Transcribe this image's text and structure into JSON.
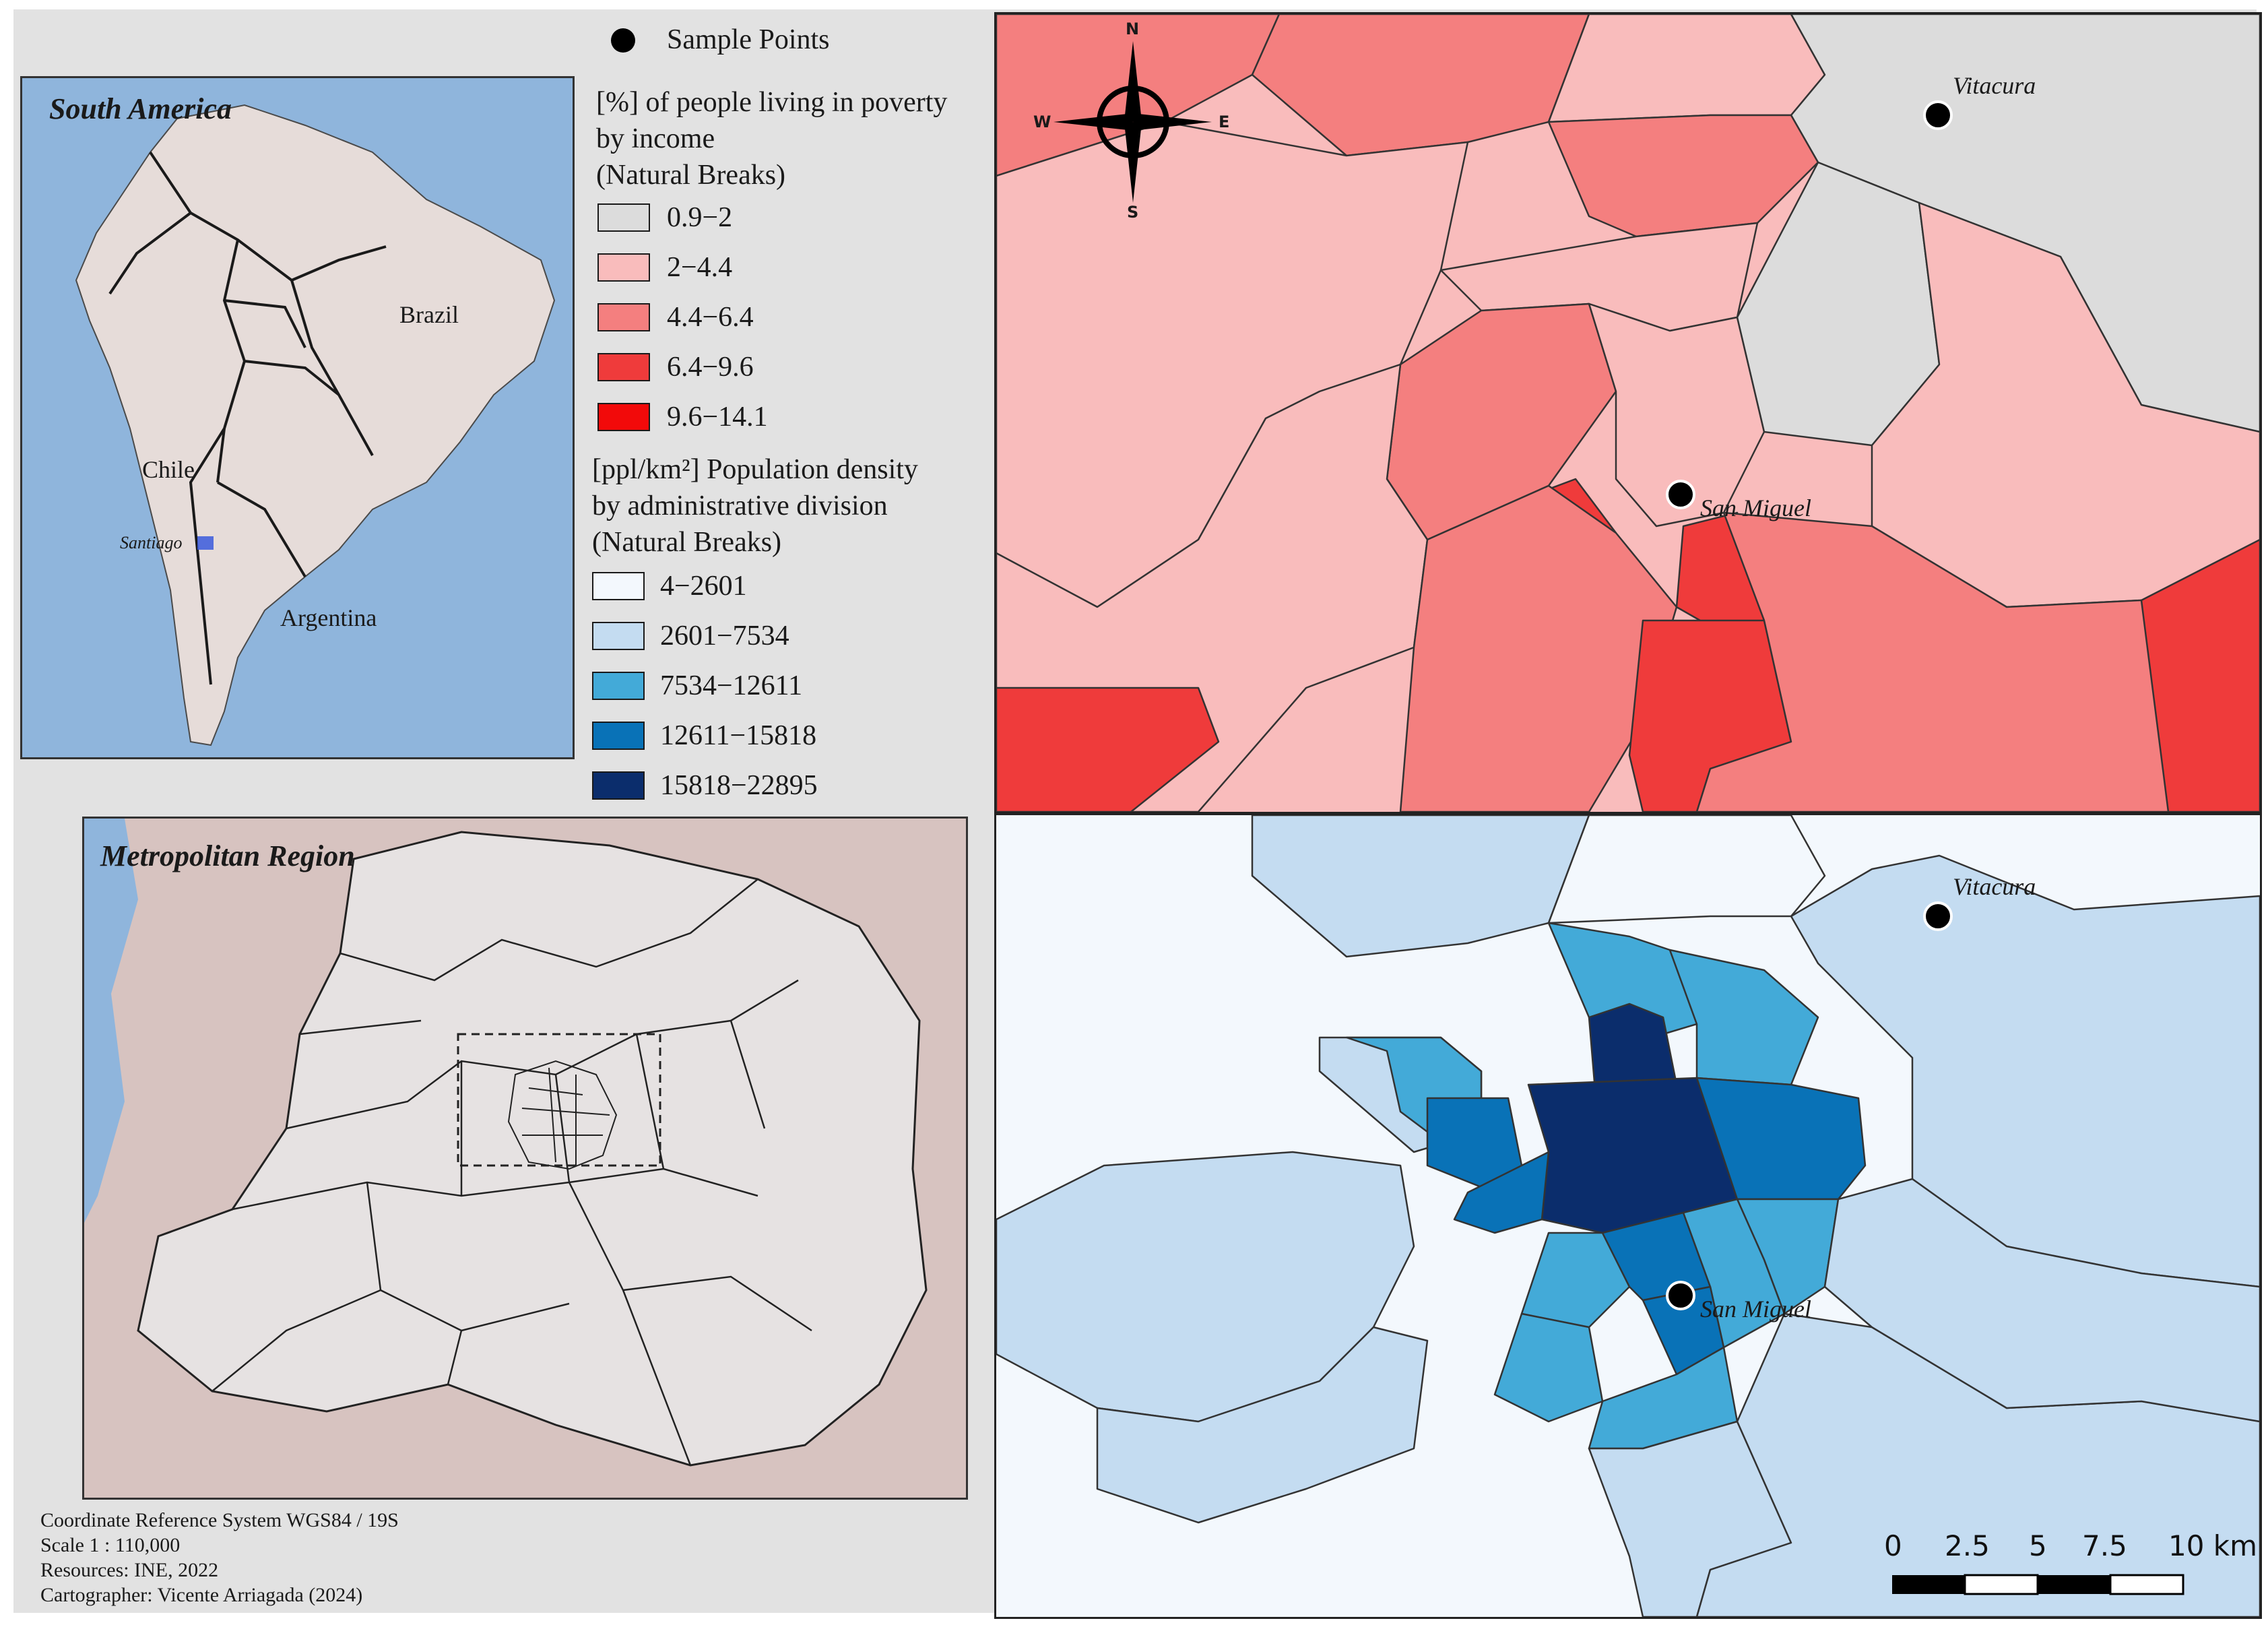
{
  "legend": {
    "sample_points_label": "Sample Points",
    "poverty_title": [
      "[%] of people living in poverty",
      "by income",
      "(Natural Breaks)"
    ],
    "poverty_classes": [
      {
        "label": "0.9−2",
        "color": "#dcdcdc"
      },
      {
        "label": "2−4.4",
        "color": "#f9bcbc"
      },
      {
        "label": "4.4−6.4",
        "color": "#f47f7f"
      },
      {
        "label": "6.4−9.6",
        "color": "#ef3b3b"
      },
      {
        "label": "9.6−14.1",
        "color": "#f20a0a"
      }
    ],
    "density_title": [
      "[ppl/km²] Population density",
      "by administrative division",
      "(Natural Breaks)"
    ],
    "density_classes": [
      {
        "label": "4−2601",
        "color": "#f3f8fd"
      },
      {
        "label": "2601−7534",
        "color": "#c4dcf1"
      },
      {
        "label": "7534−12611",
        "color": "#43aad8"
      },
      {
        "label": "12611−15818",
        "color": "#0972b7"
      },
      {
        "label": "15818−22895",
        "color": "#0b2d6c"
      }
    ]
  },
  "insets": {
    "south_america": {
      "title": "South America",
      "labels": {
        "brazil": "Brazil",
        "chile": "Chile",
        "argentina": "Argentina",
        "santiago": "Santiago"
      }
    },
    "metropolitan": {
      "title": "Metropolitan Region"
    }
  },
  "maps": {
    "city_labels": {
      "vitacura": "Vitacura",
      "san_miguel": "San Miguel"
    },
    "compass": {
      "n": "N",
      "s": "S",
      "e": "E",
      "w": "W"
    }
  },
  "scale_bar": {
    "ticks": [
      "0",
      "2.5",
      "5",
      "7.5",
      "10 km"
    ]
  },
  "credits": {
    "crs": "Coordinate Reference System WGS84 / 19S",
    "scale": "Scale 1 : 110,000",
    "resources": "Resources: INE, 2022",
    "cartographer": "Cartographer: Vicente Arriagada (2024)"
  }
}
